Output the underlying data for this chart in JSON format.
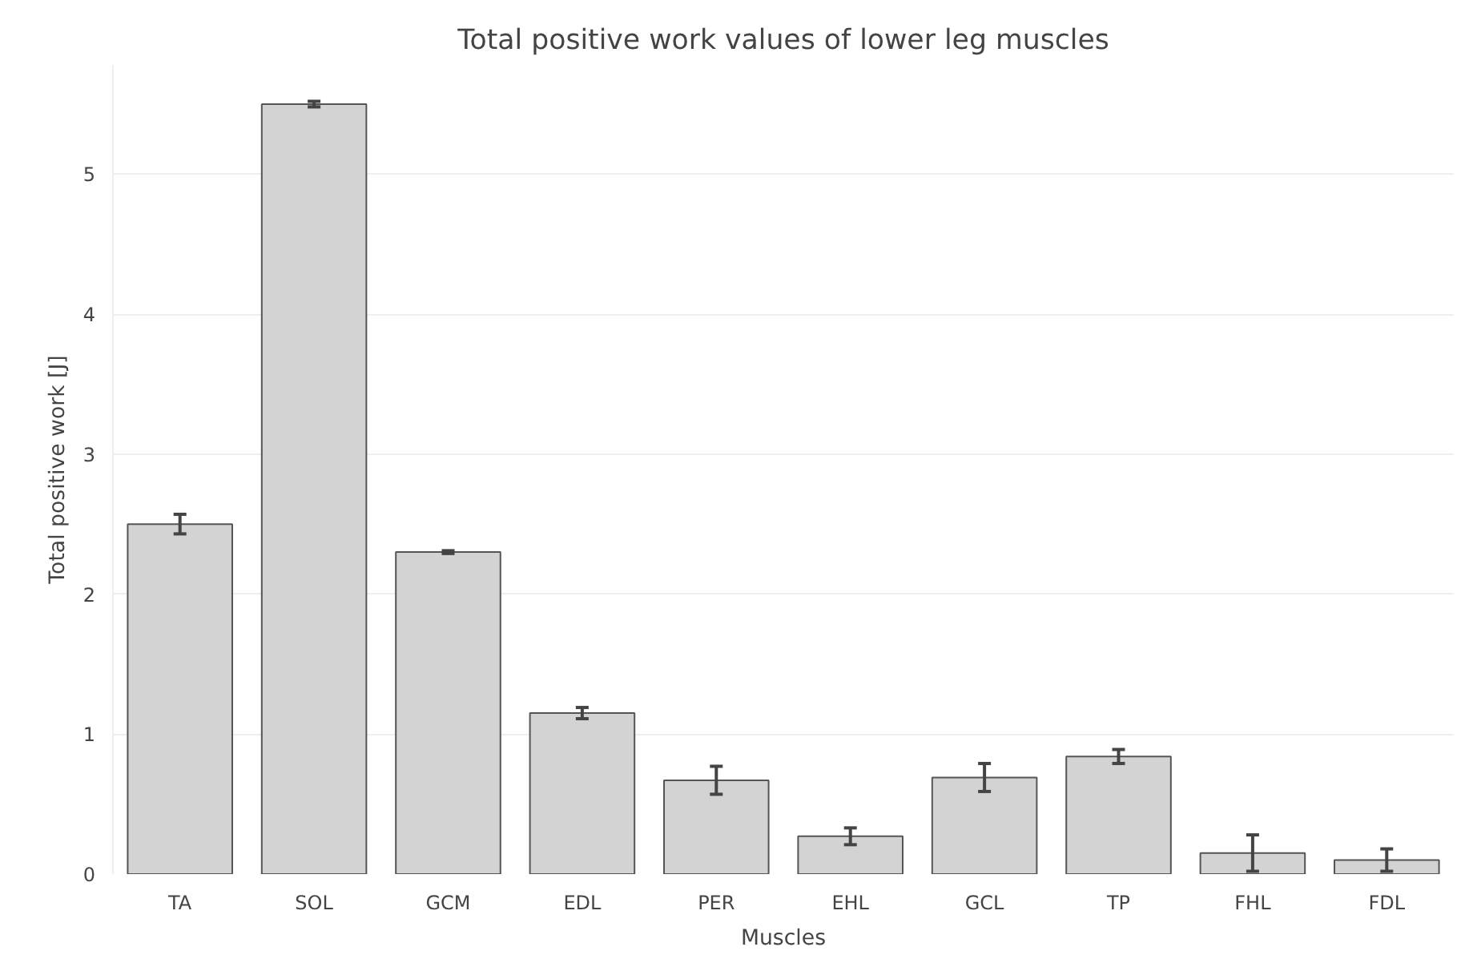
{
  "chart_data": {
    "type": "bar",
    "title": "Total positive work values of lower leg muscles",
    "xlabel": "Muscles",
    "ylabel": "Total positive work [J]",
    "categories": [
      "TA",
      "SOL",
      "GCM",
      "EDL",
      "PER",
      "EHL",
      "GCL",
      "TP",
      "FHL",
      "FDL"
    ],
    "values": [
      2.5,
      5.5,
      2.3,
      1.15,
      0.67,
      0.27,
      0.69,
      0.84,
      0.15,
      0.1
    ],
    "errors": [
      0.07,
      0.02,
      0.01,
      0.04,
      0.1,
      0.06,
      0.1,
      0.05,
      0.13,
      0.08
    ],
    "color": "#d3d3d3",
    "ylim": [
      0,
      5.78
    ],
    "yticks": [
      0,
      1,
      2,
      3,
      4,
      5
    ],
    "grid": "y"
  }
}
